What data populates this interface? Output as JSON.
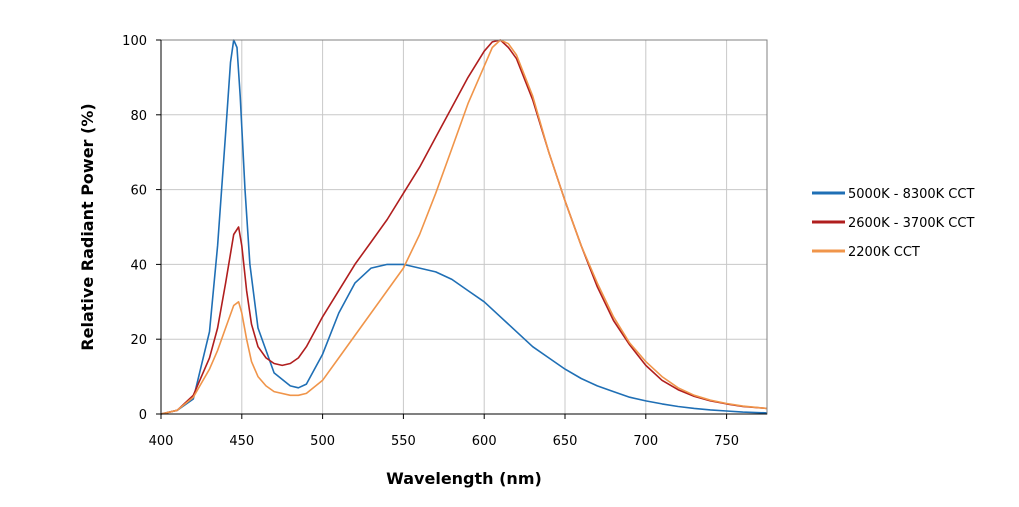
{
  "chart_data": {
    "type": "line",
    "title": "",
    "xlabel": "Wavelength (nm)",
    "ylabel": "Relative Radiant Power (%)",
    "xlim": [
      400,
      775
    ],
    "ylim": [
      0,
      100
    ],
    "x_ticks": [
      400,
      450,
      500,
      550,
      600,
      650,
      700,
      750
    ],
    "y_ticks": [
      0,
      20,
      40,
      60,
      80,
      100
    ],
    "grid": true,
    "legend_position": "right",
    "series": [
      {
        "name": "5000K - 8300K CCT",
        "color": "#1f6fb5",
        "x": [
          400,
          410,
          420,
          430,
          435,
          440,
          443,
          445,
          447,
          449,
          452,
          455,
          460,
          470,
          480,
          485,
          490,
          500,
          510,
          520,
          530,
          540,
          550,
          560,
          570,
          580,
          590,
          600,
          610,
          620,
          630,
          640,
          650,
          660,
          670,
          680,
          690,
          700,
          710,
          720,
          730,
          740,
          750,
          760,
          775
        ],
        "y": [
          0,
          1,
          4,
          22,
          45,
          75,
          94,
          100,
          98,
          85,
          60,
          40,
          23,
          11,
          7.5,
          7,
          8,
          16,
          27,
          35,
          39,
          40,
          40,
          39,
          38,
          36,
          33,
          30,
          26,
          22,
          18,
          15,
          12,
          9.5,
          7.5,
          6,
          4.5,
          3.5,
          2.7,
          2,
          1.5,
          1.1,
          0.8,
          0.5,
          0.3
        ]
      },
      {
        "name": "2600K - 3700K CCT",
        "color": "#b01e1e",
        "x": [
          400,
          410,
          420,
          430,
          435,
          440,
          445,
          448,
          450,
          453,
          456,
          460,
          465,
          470,
          475,
          480,
          485,
          490,
          500,
          510,
          520,
          530,
          540,
          550,
          560,
          570,
          580,
          590,
          600,
          605,
          610,
          615,
          620,
          630,
          640,
          650,
          660,
          670,
          680,
          690,
          700,
          710,
          720,
          730,
          740,
          750,
          760,
          775
        ],
        "y": [
          0,
          1,
          5,
          15,
          23,
          35,
          48,
          50,
          45,
          33,
          24,
          18,
          15,
          13.5,
          13,
          13.5,
          15,
          18,
          26,
          33,
          40,
          46,
          52,
          59,
          66,
          74,
          82,
          90,
          97,
          99.5,
          100,
          98,
          95,
          84,
          70,
          57,
          45,
          34,
          25,
          18.5,
          13,
          9,
          6.5,
          4.7,
          3.5,
          2.7,
          2,
          1.5
        ]
      },
      {
        "name": "2200K CCT",
        "color": "#f0954a",
        "x": [
          400,
          410,
          420,
          430,
          435,
          440,
          445,
          448,
          450,
          453,
          456,
          460,
          465,
          470,
          480,
          485,
          490,
          500,
          510,
          520,
          530,
          540,
          550,
          560,
          570,
          580,
          590,
          600,
          605,
          610,
          615,
          620,
          630,
          640,
          650,
          660,
          670,
          680,
          690,
          700,
          710,
          720,
          730,
          740,
          750,
          760,
          775
        ],
        "y": [
          0,
          1,
          4.5,
          12,
          17,
          23,
          29,
          30,
          27,
          20,
          14,
          10,
          7.5,
          6,
          5,
          5,
          5.5,
          9,
          15,
          21,
          27,
          33,
          39,
          48,
          59,
          71,
          83,
          93,
          98,
          100,
          99,
          96,
          85,
          70,
          57,
          45,
          35,
          26,
          19,
          14,
          10,
          7,
          5,
          3.7,
          2.8,
          2.1,
          1.5
        ]
      }
    ]
  }
}
